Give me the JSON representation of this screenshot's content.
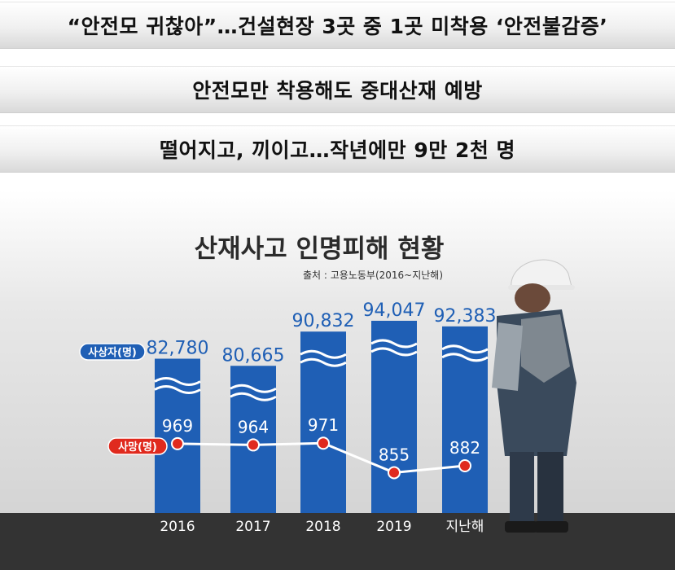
{
  "headlines": [
    "“안전모 귀찮아”…건설현장 3곳 중 1곳 미착용 ‘안전불감증’",
    "안전모만 착용해도 중대산재 예방",
    "떨어지고, 끼이고…작년에만 9만 2천 명"
  ],
  "chart_data": {
    "type": "bar",
    "title": "산재사고 인명피해 현황",
    "source": "출처 : 고용노동부(2016~지난해)",
    "categories": [
      "2016",
      "2017",
      "2018",
      "2019",
      "지난해"
    ],
    "series": [
      {
        "name": "사상자(명)",
        "type": "bar",
        "values": [
          82780,
          80665,
          90832,
          94047,
          92383
        ],
        "labels": [
          "82,780",
          "80,665",
          "90,832",
          "94,047",
          "92,383"
        ]
      },
      {
        "name": "사망(명)",
        "type": "line",
        "values": [
          969,
          964,
          971,
          855,
          882
        ],
        "labels": [
          "969",
          "964",
          "971",
          "855",
          "882"
        ]
      }
    ],
    "colors": {
      "bar": "#1f5fb5",
      "line": "#ffffff",
      "marker": "#e02a1e",
      "casualty_badge": "#1f5fb5",
      "death_badge": "#e02a1e"
    }
  }
}
